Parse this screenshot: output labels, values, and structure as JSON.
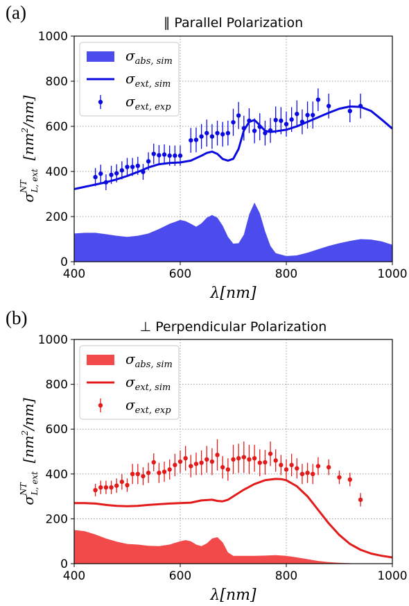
{
  "chart_data": [
    {
      "type": "line",
      "panel_label": "(a)",
      "title": "∥ Parallel Polarization",
      "xlabel": "λ[nm]",
      "ylabel": "σ^{NT}_{L, ext}  [nm²/nm]",
      "xlim": [
        400,
        1000
      ],
      "ylim": [
        0,
        1000
      ],
      "xticks": [
        400,
        600,
        800,
        1000
      ],
      "yticks": [
        0,
        200,
        400,
        600,
        800,
        1000
      ],
      "grid": true,
      "legend_position": "top-left",
      "color": "#0a0ae0",
      "fill_color": "#4c4cee",
      "series": [
        {
          "name": "σabs, sim",
          "legend": {
            "sym": "σ",
            "sub": "abs, sim"
          },
          "kind": "area",
          "x": [
            400,
            420,
            440,
            460,
            480,
            500,
            520,
            540,
            560,
            580,
            600,
            610,
            620,
            630,
            640,
            650,
            660,
            670,
            680,
            690,
            700,
            710,
            720,
            730,
            740,
            750,
            760,
            770,
            780,
            800,
            820,
            840,
            860,
            880,
            900,
            920,
            940,
            960,
            980,
            1000
          ],
          "y": [
            125,
            128,
            128,
            122,
            115,
            110,
            115,
            125,
            145,
            168,
            185,
            180,
            168,
            155,
            170,
            195,
            207,
            195,
            160,
            110,
            80,
            82,
            120,
            210,
            262,
            215,
            135,
            70,
            38,
            25,
            28,
            40,
            55,
            70,
            82,
            92,
            100,
            98,
            90,
            75
          ]
        },
        {
          "name": "σext, sim",
          "legend": {
            "sym": "σ",
            "sub": "ext, sim"
          },
          "kind": "line",
          "x": [
            400,
            420,
            440,
            460,
            480,
            500,
            520,
            540,
            560,
            580,
            600,
            620,
            640,
            650,
            660,
            670,
            680,
            690,
            700,
            710,
            720,
            730,
            740,
            750,
            760,
            770,
            780,
            800,
            820,
            840,
            860,
            880,
            900,
            920,
            940,
            960,
            980,
            1000
          ],
          "y": [
            322,
            332,
            342,
            352,
            365,
            380,
            398,
            418,
            432,
            438,
            440,
            448,
            470,
            482,
            488,
            478,
            455,
            448,
            456,
            500,
            582,
            620,
            628,
            605,
            580,
            575,
            578,
            585,
            600,
            620,
            640,
            660,
            678,
            688,
            686,
            668,
            630,
            590
          ]
        },
        {
          "name": "σext, exp",
          "legend": {
            "sym": "σ",
            "sub": "ext, exp"
          },
          "kind": "errorbar",
          "x": [
            440,
            450,
            460,
            470,
            480,
            490,
            500,
            510,
            520,
            530,
            540,
            550,
            560,
            570,
            580,
            590,
            600,
            620,
            630,
            640,
            650,
            660,
            670,
            680,
            690,
            700,
            710,
            720,
            730,
            740,
            750,
            760,
            770,
            780,
            790,
            800,
            810,
            820,
            830,
            840,
            850,
            860,
            880,
            920,
            940
          ],
          "y": [
            375,
            390,
            352,
            385,
            392,
            405,
            420,
            420,
            425,
            398,
            445,
            478,
            472,
            475,
            470,
            470,
            470,
            538,
            540,
            555,
            570,
            555,
            570,
            565,
            570,
            618,
            648,
            592,
            625,
            580,
            598,
            570,
            582,
            628,
            625,
            610,
            630,
            655,
            620,
            650,
            650,
            718,
            690,
            668,
            690
          ],
          "err": [
            40,
            40,
            35,
            40,
            40,
            40,
            40,
            40,
            40,
            35,
            40,
            45,
            45,
            45,
            45,
            45,
            45,
            55,
            55,
            55,
            60,
            55,
            55,
            55,
            55,
            60,
            60,
            55,
            55,
            55,
            60,
            55,
            55,
            60,
            60,
            55,
            55,
            60,
            55,
            60,
            60,
            50,
            55,
            50,
            55
          ]
        }
      ]
    },
    {
      "type": "line",
      "panel_label": "(b)",
      "title": "⊥ Perpendicular Polarization",
      "xlabel": "λ[nm]",
      "ylabel": "σ^{NT}_{L, ext}  [nm²/nm]",
      "xlim": [
        400,
        1000
      ],
      "ylim": [
        0,
        1000
      ],
      "xticks": [
        400,
        600,
        800,
        1000
      ],
      "yticks": [
        0,
        200,
        400,
        600,
        800,
        1000
      ],
      "grid": true,
      "legend_position": "top-left",
      "color": "#e31a1a",
      "fill_color": "#f24a4a",
      "series": [
        {
          "name": "σabs, sim",
          "legend": {
            "sym": "σ",
            "sub": "abs, sim"
          },
          "kind": "area",
          "x": [
            400,
            420,
            440,
            460,
            480,
            500,
            520,
            540,
            560,
            580,
            600,
            610,
            620,
            630,
            640,
            650,
            660,
            670,
            680,
            690,
            700,
            720,
            740,
            760,
            780,
            800,
            820,
            840,
            860,
            880,
            900,
            920,
            940,
            960,
            980,
            1000
          ],
          "y": [
            150,
            145,
            130,
            112,
            98,
            88,
            85,
            80,
            78,
            85,
            100,
            105,
            100,
            85,
            78,
            90,
            112,
            118,
            95,
            50,
            35,
            35,
            35,
            36,
            38,
            35,
            28,
            20,
            12,
            7,
            4,
            2,
            1,
            0,
            0,
            0
          ]
        },
        {
          "name": "σext, sim",
          "legend": {
            "sym": "σ",
            "sub": "ext, sim"
          },
          "kind": "line",
          "x": [
            400,
            420,
            440,
            460,
            480,
            500,
            520,
            540,
            560,
            580,
            600,
            620,
            640,
            660,
            670,
            680,
            690,
            700,
            720,
            740,
            760,
            780,
            790,
            800,
            820,
            840,
            860,
            880,
            900,
            920,
            940,
            960,
            980,
            1000
          ],
          "y": [
            270,
            270,
            268,
            262,
            258,
            256,
            258,
            262,
            265,
            268,
            270,
            272,
            282,
            285,
            280,
            278,
            285,
            300,
            330,
            355,
            372,
            378,
            377,
            372,
            345,
            300,
            240,
            180,
            128,
            88,
            62,
            45,
            35,
            28
          ]
        },
        {
          "name": "σext, exp",
          "legend": {
            "sym": "σ",
            "sub": "ext, exp"
          },
          "kind": "errorbar",
          "x": [
            440,
            450,
            460,
            470,
            480,
            490,
            500,
            510,
            520,
            530,
            540,
            550,
            560,
            570,
            580,
            590,
            600,
            610,
            620,
            630,
            640,
            650,
            660,
            670,
            680,
            690,
            700,
            710,
            720,
            730,
            740,
            750,
            760,
            770,
            780,
            790,
            800,
            810,
            820,
            830,
            840,
            850,
            860,
            880,
            900,
            920,
            940
          ],
          "y": [
            328,
            340,
            340,
            340,
            348,
            365,
            350,
            400,
            400,
            390,
            405,
            452,
            405,
            410,
            420,
            440,
            455,
            470,
            435,
            445,
            450,
            465,
            455,
            485,
            430,
            420,
            465,
            470,
            475,
            465,
            470,
            450,
            452,
            490,
            460,
            440,
            420,
            440,
            425,
            400,
            405,
            400,
            435,
            430,
            385,
            375,
            285
          ],
          "err": [
            28,
            30,
            30,
            30,
            32,
            35,
            30,
            45,
            45,
            40,
            45,
            40,
            45,
            45,
            45,
            50,
            50,
            55,
            50,
            50,
            55,
            60,
            60,
            70,
            50,
            50,
            65,
            65,
            70,
            65,
            60,
            60,
            55,
            55,
            50,
            45,
            45,
            50,
            45,
            45,
            45,
            45,
            40,
            35,
            30,
            30,
            30
          ]
        }
      ]
    }
  ]
}
